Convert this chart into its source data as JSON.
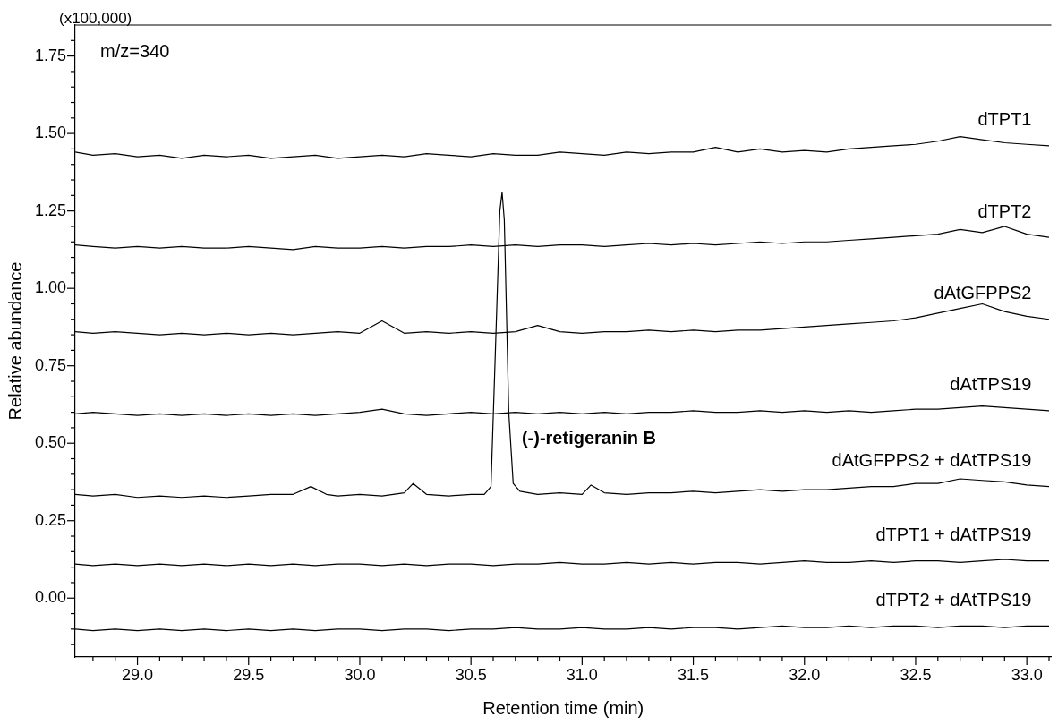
{
  "chart_data": {
    "type": "line",
    "xlabel": "Retention time (min)",
    "ylabel": "Relative abundance",
    "annotations": [
      "(x100,000)",
      "m/z=340",
      "(-)-retigeranin B"
    ],
    "x": [
      28.72,
      28.8,
      28.9,
      29.0,
      29.1,
      29.2,
      29.3,
      29.4,
      29.5,
      29.6,
      29.7,
      29.8,
      29.9,
      30.0,
      30.1,
      30.2,
      30.3,
      30.4,
      30.5,
      30.6,
      30.7,
      30.8,
      30.9,
      31.0,
      31.1,
      31.2,
      31.3,
      31.4,
      31.5,
      31.6,
      31.7,
      31.8,
      31.9,
      32.0,
      32.1,
      32.2,
      32.3,
      32.4,
      32.5,
      32.6,
      32.7,
      32.8,
      32.9,
      33.0,
      33.1
    ],
    "series": [
      {
        "name": "dTPT1",
        "color": "#000000",
        "values": [
          1.44,
          1.43,
          1.435,
          1.425,
          1.43,
          1.42,
          1.43,
          1.425,
          1.43,
          1.42,
          1.425,
          1.43,
          1.42,
          1.425,
          1.43,
          1.425,
          1.435,
          1.43,
          1.425,
          1.435,
          1.43,
          1.43,
          1.44,
          1.435,
          1.43,
          1.44,
          1.435,
          1.44,
          1.44,
          1.455,
          1.44,
          1.45,
          1.44,
          1.445,
          1.44,
          1.45,
          1.455,
          1.46,
          1.465,
          1.475,
          1.49,
          1.48,
          1.47,
          1.465,
          1.46
        ]
      },
      {
        "name": "dTPT2",
        "color": "#000000",
        "values": [
          1.14,
          1.135,
          1.13,
          1.135,
          1.13,
          1.135,
          1.13,
          1.13,
          1.135,
          1.13,
          1.125,
          1.135,
          1.13,
          1.13,
          1.135,
          1.13,
          1.135,
          1.135,
          1.14,
          1.135,
          1.14,
          1.135,
          1.14,
          1.14,
          1.135,
          1.14,
          1.145,
          1.14,
          1.145,
          1.14,
          1.145,
          1.15,
          1.145,
          1.15,
          1.15,
          1.155,
          1.16,
          1.165,
          1.17,
          1.175,
          1.19,
          1.18,
          1.2,
          1.175,
          1.165
        ]
      },
      {
        "name": "dAtGFPPS2",
        "color": "#000000",
        "values": [
          0.86,
          0.855,
          0.86,
          0.855,
          0.85,
          0.855,
          0.85,
          0.855,
          0.85,
          0.855,
          0.85,
          0.855,
          0.86,
          0.855,
          0.895,
          0.855,
          0.86,
          0.855,
          0.86,
          0.855,
          0.86,
          0.88,
          0.86,
          0.855,
          0.86,
          0.86,
          0.865,
          0.86,
          0.865,
          0.86,
          0.865,
          0.865,
          0.87,
          0.875,
          0.88,
          0.885,
          0.89,
          0.895,
          0.905,
          0.92,
          0.935,
          0.95,
          0.925,
          0.91,
          0.9
        ]
      },
      {
        "name": "dAtTPS19",
        "color": "#000000",
        "values": [
          0.595,
          0.6,
          0.595,
          0.59,
          0.595,
          0.59,
          0.595,
          0.59,
          0.595,
          0.59,
          0.595,
          0.59,
          0.595,
          0.6,
          0.61,
          0.595,
          0.59,
          0.595,
          0.6,
          0.595,
          0.6,
          0.595,
          0.6,
          0.595,
          0.6,
          0.595,
          0.6,
          0.6,
          0.605,
          0.6,
          0.6,
          0.605,
          0.6,
          0.605,
          0.6,
          0.605,
          0.6,
          0.605,
          0.61,
          0.61,
          0.615,
          0.62,
          0.615,
          0.61,
          0.605
        ]
      },
      {
        "name": "dAtGFPPS2 + dAtTPS19",
        "color": "#000000",
        "x": [
          28.72,
          28.8,
          28.9,
          29.0,
          29.1,
          29.2,
          29.3,
          29.4,
          29.5,
          29.6,
          29.7,
          29.78,
          29.85,
          29.9,
          30.0,
          30.1,
          30.2,
          30.24,
          30.3,
          30.4,
          30.5,
          30.56,
          30.59,
          30.61,
          30.63,
          30.64,
          30.65,
          30.67,
          30.69,
          30.72,
          30.8,
          30.9,
          31.0,
          31.04,
          31.1,
          31.2,
          31.3,
          31.4,
          31.5,
          31.6,
          31.7,
          31.8,
          31.9,
          32.0,
          32.1,
          32.2,
          32.3,
          32.4,
          32.5,
          32.6,
          32.7,
          32.8,
          32.9,
          33.0,
          33.1
        ],
        "values": [
          0.335,
          0.33,
          0.335,
          0.325,
          0.33,
          0.325,
          0.33,
          0.325,
          0.33,
          0.335,
          0.335,
          0.36,
          0.335,
          0.33,
          0.335,
          0.33,
          0.34,
          0.37,
          0.335,
          0.33,
          0.335,
          0.335,
          0.36,
          0.8,
          1.25,
          1.31,
          1.22,
          0.6,
          0.37,
          0.345,
          0.335,
          0.34,
          0.335,
          0.365,
          0.34,
          0.335,
          0.34,
          0.34,
          0.345,
          0.34,
          0.345,
          0.35,
          0.345,
          0.35,
          0.35,
          0.355,
          0.36,
          0.36,
          0.37,
          0.37,
          0.385,
          0.38,
          0.375,
          0.365,
          0.36
        ]
      },
      {
        "name": "dTPT1 + dAtTPS19",
        "color": "#000000",
        "values": [
          0.11,
          0.105,
          0.11,
          0.105,
          0.11,
          0.105,
          0.11,
          0.105,
          0.11,
          0.105,
          0.11,
          0.105,
          0.11,
          0.11,
          0.105,
          0.11,
          0.105,
          0.11,
          0.11,
          0.105,
          0.11,
          0.11,
          0.115,
          0.11,
          0.11,
          0.115,
          0.11,
          0.115,
          0.11,
          0.115,
          0.115,
          0.11,
          0.115,
          0.12,
          0.115,
          0.115,
          0.12,
          0.115,
          0.12,
          0.12,
          0.115,
          0.12,
          0.125,
          0.12,
          0.12
        ]
      },
      {
        "name": "dTPT2 + dAtTPS19",
        "color": "#000000",
        "values": [
          -0.1,
          -0.105,
          -0.1,
          -0.105,
          -0.1,
          -0.105,
          -0.1,
          -0.105,
          -0.1,
          -0.105,
          -0.1,
          -0.105,
          -0.1,
          -0.1,
          -0.105,
          -0.1,
          -0.1,
          -0.105,
          -0.1,
          -0.1,
          -0.095,
          -0.1,
          -0.1,
          -0.095,
          -0.1,
          -0.1,
          -0.095,
          -0.1,
          -0.095,
          -0.095,
          -0.1,
          -0.095,
          -0.09,
          -0.095,
          -0.095,
          -0.09,
          -0.095,
          -0.09,
          -0.09,
          -0.095,
          -0.09,
          -0.09,
          -0.095,
          -0.09,
          -0.09
        ]
      }
    ],
    "xlim": [
      28.72,
      33.11
    ],
    "xticks": [
      {
        "value": 28.8,
        "label": null
      },
      {
        "value": 28.9,
        "label": null
      },
      {
        "value": 29.0,
        "label": "29.0"
      },
      {
        "value": 29.1,
        "label": null
      },
      {
        "value": 29.2,
        "label": null
      },
      {
        "value": 29.3,
        "label": null
      },
      {
        "value": 29.4,
        "label": null
      },
      {
        "value": 29.5,
        "label": "29.5"
      },
      {
        "value": 29.6,
        "label": null
      },
      {
        "value": 29.7,
        "label": null
      },
      {
        "value": 29.8,
        "label": null
      },
      {
        "value": 29.9,
        "label": null
      },
      {
        "value": 30.0,
        "label": "30.0"
      },
      {
        "value": 30.1,
        "label": null
      },
      {
        "value": 30.2,
        "label": null
      },
      {
        "value": 30.3,
        "label": null
      },
      {
        "value": 30.4,
        "label": null
      },
      {
        "value": 30.5,
        "label": "30.5"
      },
      {
        "value": 30.6,
        "label": null
      },
      {
        "value": 30.7,
        "label": null
      },
      {
        "value": 30.8,
        "label": null
      },
      {
        "value": 30.9,
        "label": null
      },
      {
        "value": 31.0,
        "label": "31.0"
      },
      {
        "value": 31.1,
        "label": null
      },
      {
        "value": 31.2,
        "label": null
      },
      {
        "value": 31.3,
        "label": null
      },
      {
        "value": 31.4,
        "label": null
      },
      {
        "value": 31.5,
        "label": "31.5"
      },
      {
        "value": 31.6,
        "label": null
      },
      {
        "value": 31.7,
        "label": null
      },
      {
        "value": 31.8,
        "label": null
      },
      {
        "value": 31.9,
        "label": null
      },
      {
        "value": 32.0,
        "label": "32.0"
      },
      {
        "value": 32.1,
        "label": null
      },
      {
        "value": 32.2,
        "label": null
      },
      {
        "value": 32.3,
        "label": null
      },
      {
        "value": 32.4,
        "label": null
      },
      {
        "value": 32.5,
        "label": "32.5"
      },
      {
        "value": 32.6,
        "label": null
      },
      {
        "value": 32.7,
        "label": null
      },
      {
        "value": 32.8,
        "label": null
      },
      {
        "value": 32.9,
        "label": null
      },
      {
        "value": 33.0,
        "label": "33.0"
      },
      {
        "value": 33.1,
        "label": null
      }
    ],
    "ylim": [
      -0.19,
      1.85
    ],
    "yticks": [
      {
        "value": -0.15,
        "label": null
      },
      {
        "value": -0.1,
        "label": null
      },
      {
        "value": -0.05,
        "label": null
      },
      {
        "value": 0,
        "label": "0.00"
      },
      {
        "value": 0.05,
        "label": null
      },
      {
        "value": 0.1,
        "label": null
      },
      {
        "value": 0.15,
        "label": null
      },
      {
        "value": 0.2,
        "label": null
      },
      {
        "value": 0.25,
        "label": "0.25"
      },
      {
        "value": 0.3,
        "label": null
      },
      {
        "value": 0.35,
        "label": null
      },
      {
        "value": 0.4,
        "label": null
      },
      {
        "value": 0.45,
        "label": null
      },
      {
        "value": 0.5,
        "label": "0.50"
      },
      {
        "value": 0.55,
        "label": null
      },
      {
        "value": 0.6,
        "label": null
      },
      {
        "value": 0.65,
        "label": null
      },
      {
        "value": 0.7,
        "label": null
      },
      {
        "value": 0.75,
        "label": "0.75"
      },
      {
        "value": 0.8,
        "label": null
      },
      {
        "value": 0.85,
        "label": null
      },
      {
        "value": 0.9,
        "label": null
      },
      {
        "value": 0.95,
        "label": null
      },
      {
        "value": 1.0,
        "label": "1.00"
      },
      {
        "value": 1.05,
        "label": null
      },
      {
        "value": 1.1,
        "label": null
      },
      {
        "value": 1.15,
        "label": null
      },
      {
        "value": 1.2,
        "label": null
      },
      {
        "value": 1.25,
        "label": "1.25"
      },
      {
        "value": 1.3,
        "label": null
      },
      {
        "value": 1.35,
        "label": null
      },
      {
        "value": 1.4,
        "label": null
      },
      {
        "value": 1.45,
        "label": null
      },
      {
        "value": 1.5,
        "label": "1.50"
      },
      {
        "value": 1.55,
        "label": null
      },
      {
        "value": 1.6,
        "label": null
      },
      {
        "value": 1.65,
        "label": null
      },
      {
        "value": 1.7,
        "label": null
      },
      {
        "value": 1.75,
        "label": "1.75"
      },
      {
        "value": 1.8,
        "label": null
      }
    ],
    "grid": false,
    "legend": false,
    "marker": "none",
    "line_style": "solid"
  }
}
